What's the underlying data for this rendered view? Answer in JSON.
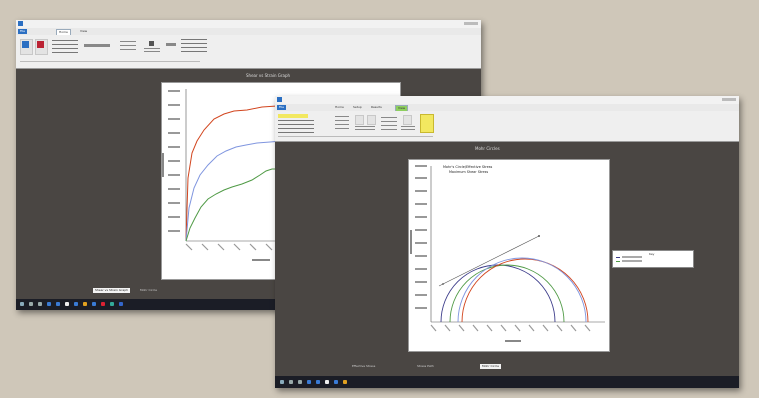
{
  "back_window": {
    "tabs": [
      {
        "label": "File",
        "kind": "file"
      },
      {
        "label": "Home",
        "kind": "active"
      },
      {
        "label": "View",
        "kind": ""
      }
    ],
    "view_title": "Shear vs Strain Graph",
    "bottom_tabs": [
      {
        "label": "Shear vs Strain Graph",
        "active": true
      },
      {
        "label": "Mohr Circle",
        "active": false
      }
    ],
    "series_colors": [
      "#d2451e",
      "#7f95df",
      "#4f9a45"
    ]
  },
  "front_window": {
    "tabs": [
      {
        "label": "File",
        "kind": "file"
      },
      {
        "label": "Home",
        "kind": ""
      },
      {
        "label": "Setup",
        "kind": ""
      },
      {
        "label": "Results",
        "kind": ""
      },
      {
        "label": "View",
        "kind": "active"
      }
    ],
    "view_title": "Mohr Circles",
    "plot_title_line1": "Mohr's Circle/Effective Stress",
    "plot_title_line2": "Maximum Shear Stress",
    "legend_title": "Key",
    "bottom_tabs": [
      {
        "label": "Effective Stress",
        "active": false
      },
      {
        "label": "Stress Path",
        "active": false
      },
      {
        "label": "Mohr Circle",
        "active": true
      }
    ],
    "series_colors": [
      "#3c3c8a",
      "#4f9a45",
      "#d2451e",
      "#7f95df"
    ]
  }
}
